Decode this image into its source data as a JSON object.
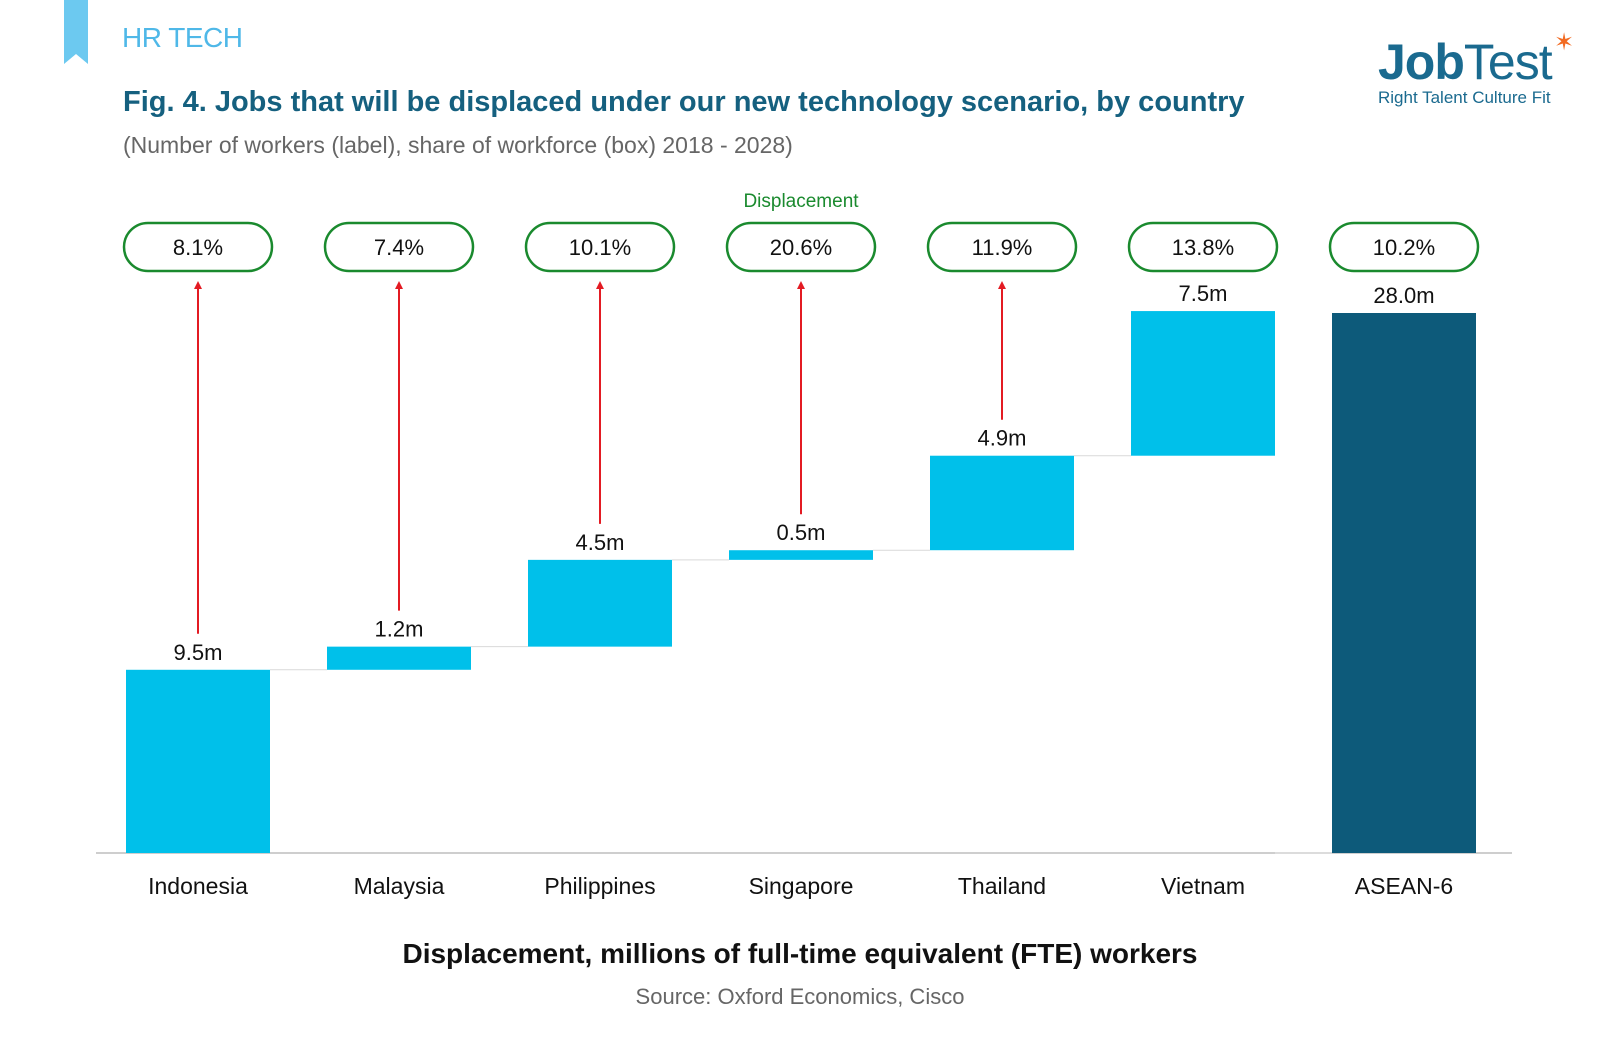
{
  "header": {
    "tag": "HR TECH",
    "logo_primary": "Job",
    "logo_secondary": "Test",
    "logo_tagline": "Right Talent Culture Fit",
    "ribbon_color": "#6cc9f0"
  },
  "title": "Fig. 4. Jobs that will be displaced under our new technology scenario, by country",
  "subtitle": "(Number of workers (label), share of workforce (box) 2018 - 2028)",
  "footer": {
    "title": "Displacement, millions of full-time equivalent (FTE) workers",
    "source": "Source: Oxford Economics, Cisco"
  },
  "chart_data": {
    "type": "bar",
    "subtype": "waterfall",
    "annotation": "Displacement",
    "categories": [
      "Indonesia",
      "Malaysia",
      "Philippines",
      "Singapore",
      "Thailand",
      "Vietnam",
      "ASEAN-6"
    ],
    "values": [
      9.5,
      1.2,
      4.5,
      0.5,
      4.9,
      7.5,
      28.0
    ],
    "value_labels": [
      "9.5m",
      "1.2m",
      "4.5m",
      "0.5m",
      "4.9m",
      "7.5m",
      "28.0m"
    ],
    "shares": [
      "8.1%",
      "7.4%",
      "10.1%",
      "20.6%",
      "11.9%",
      "13.8%",
      "10.2%"
    ],
    "is_total": [
      false,
      false,
      false,
      false,
      false,
      false,
      true
    ],
    "ylim": [
      0,
      28.0
    ],
    "grid": false,
    "colors": {
      "increment": "#00c0ea",
      "total": "#0d5a7a",
      "box_border": "#1a8a2e",
      "arrow": "#e31b23",
      "annotation": "#1a8a2e"
    }
  }
}
